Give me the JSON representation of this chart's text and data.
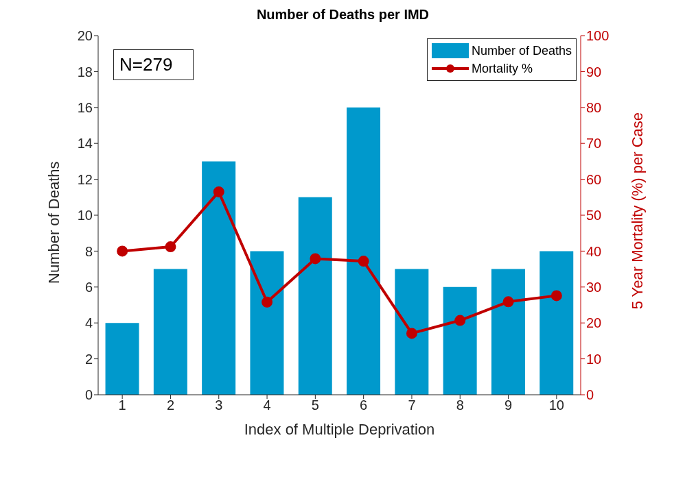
{
  "chart_data": {
    "type": "bar",
    "title": "Number of Deaths per IMD",
    "xlabel": "Index of Multiple Deprivation",
    "ylabel": "Number of Deaths",
    "y2label": "5 Year Mortality (%) per Case",
    "categories": [
      "1",
      "2",
      "3",
      "4",
      "5",
      "6",
      "7",
      "8",
      "9",
      "10"
    ],
    "series": [
      {
        "name": "Number of Deaths",
        "color": "#0099cc",
        "values": [
          4,
          7,
          13,
          8,
          11,
          16,
          7,
          6,
          7,
          8
        ]
      },
      {
        "name": "Mortality %",
        "type": "line",
        "axis": "y2",
        "color": "#c00000",
        "marker": "circle",
        "line_style": "solid",
        "values": [
          40,
          41.2,
          56.5,
          25.8,
          37.9,
          37.2,
          17.1,
          20.7,
          25.9,
          27.6
        ]
      }
    ],
    "ylim": [
      0,
      20
    ],
    "yticks": [
      0,
      2,
      4,
      6,
      8,
      10,
      12,
      14,
      16,
      18,
      20
    ],
    "y2lim": [
      0,
      100
    ],
    "y2ticks": [
      0,
      10,
      20,
      30,
      40,
      50,
      60,
      70,
      80,
      90,
      100
    ],
    "grid": false,
    "legend": "top right",
    "annotations": [
      "N=279"
    ]
  }
}
